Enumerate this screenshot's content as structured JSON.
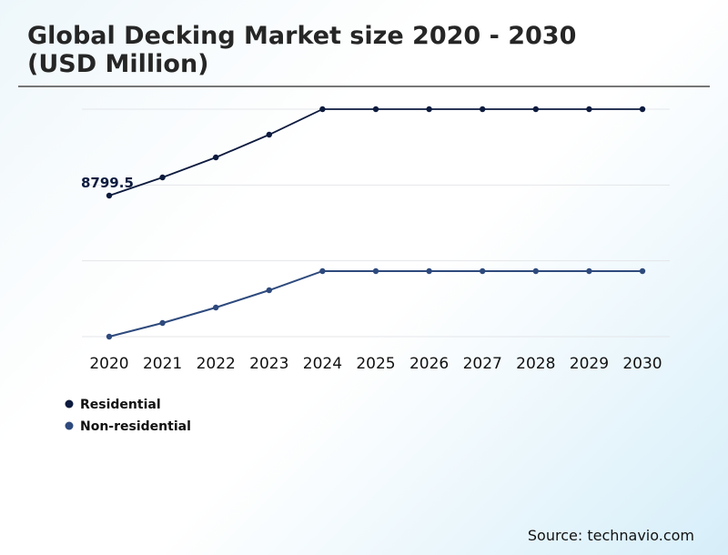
{
  "title_line1": "Global Decking Market size 2020 - 2030",
  "title_line2": "(USD Million)",
  "source": "Source: technavio.com",
  "chart_data": {
    "type": "line",
    "title": "Global Decking Market size 2020 - 2030 (USD Million)",
    "categories": [
      "2020",
      "2021",
      "2022",
      "2023",
      "2024",
      "2025",
      "2026",
      "2027",
      "2028",
      "2029",
      "2030"
    ],
    "series": [
      {
        "name": "Residential",
        "color": "#0d1b3e",
        "values": [
          8799.5,
          9935,
          11184,
          12603,
          14193,
          14193,
          14193,
          14193,
          14193,
          14193,
          14193
        ]
      },
      {
        "name": "Non-residential",
        "color": "#2e4a7d",
        "values": [
          0,
          852,
          1817,
          2895,
          4088,
          4088,
          4088,
          4088,
          4088,
          4088,
          4088
        ]
      }
    ],
    "annotations": [
      {
        "x": "2020",
        "series": "Residential",
        "text": "8799.5"
      }
    ],
    "ylim": [
      0,
      14193
    ],
    "yticks": [
      0,
      4731,
      9462,
      14193
    ],
    "y_tick_labels_shown": false,
    "grid": true,
    "legend": "bottom-left"
  }
}
